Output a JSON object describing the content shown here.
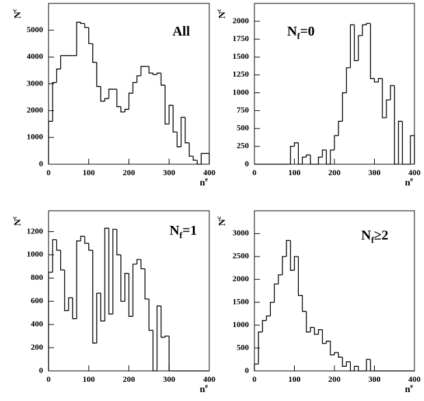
{
  "chart_data": [
    {
      "type": "histogram",
      "title": [
        {
          "text": "All"
        }
      ],
      "x_label": [
        {
          "text": "n"
        },
        {
          "text": "e",
          "sup": true
        }
      ],
      "y_label": [
        {
          "text": "N"
        },
        {
          "text": "c",
          "sup": true
        }
      ],
      "bins": [
        0,
        10,
        20,
        30,
        40,
        50,
        60,
        70,
        80,
        90,
        100,
        110,
        120,
        130,
        140,
        150,
        160,
        170,
        180,
        190,
        200,
        210,
        220,
        230,
        240,
        250,
        260,
        270,
        280,
        290,
        300,
        310,
        320,
        330,
        340,
        350,
        360,
        370,
        380,
        390,
        400
      ],
      "values": [
        1600,
        3050,
        3550,
        4050,
        4050,
        4050,
        4050,
        5300,
        5250,
        5100,
        4500,
        3800,
        2900,
        2350,
        2450,
        2800,
        2800,
        2150,
        1950,
        2050,
        2650,
        3050,
        3300,
        3650,
        3650,
        3400,
        3350,
        3400,
        2950,
        1500,
        2200,
        1200,
        650,
        1750,
        800,
        300,
        150,
        0,
        400,
        400
      ],
      "xlim": [
        0,
        400
      ],
      "xticks": [
        0,
        100,
        200,
        300,
        400
      ],
      "ylim": [
        0,
        6000
      ],
      "yticks": [
        0,
        1000,
        2000,
        3000,
        4000,
        5000
      ],
      "color": "#000000"
    },
    {
      "type": "histogram",
      "title": [
        {
          "text": "N"
        },
        {
          "text": "f",
          "sub": true
        },
        {
          "text": "=0"
        }
      ],
      "x_label": [
        {
          "text": "n"
        },
        {
          "text": "e",
          "sup": true
        }
      ],
      "y_label": [
        {
          "text": "N"
        },
        {
          "text": "c",
          "sup": true
        }
      ],
      "bins": [
        0,
        10,
        20,
        30,
        40,
        50,
        60,
        70,
        80,
        90,
        100,
        110,
        120,
        130,
        140,
        150,
        160,
        170,
        180,
        190,
        200,
        210,
        220,
        230,
        240,
        250,
        260,
        270,
        280,
        290,
        300,
        310,
        320,
        330,
        340,
        350,
        360,
        370,
        380,
        390,
        400
      ],
      "values": [
        0,
        0,
        0,
        0,
        0,
        0,
        0,
        0,
        0,
        250,
        300,
        0,
        100,
        130,
        0,
        0,
        100,
        200,
        0,
        200,
        400,
        600,
        1000,
        1350,
        1950,
        1450,
        1800,
        1950,
        1970,
        1200,
        1150,
        1200,
        650,
        900,
        1100,
        0,
        600,
        0,
        0,
        400
      ],
      "xlim": [
        0,
        400
      ],
      "xticks": [
        0,
        100,
        200,
        300,
        400
      ],
      "ylim": [
        0,
        2250
      ],
      "yticks": [
        0,
        250,
        500,
        750,
        1000,
        1250,
        1500,
        1750,
        2000
      ],
      "color": "#000000"
    },
    {
      "type": "histogram",
      "title": [
        {
          "text": "N"
        },
        {
          "text": "f",
          "sub": true
        },
        {
          "text": "=1"
        }
      ],
      "x_label": [
        {
          "text": "n"
        },
        {
          "text": "e",
          "sup": true
        }
      ],
      "y_label": [
        {
          "text": "N"
        },
        {
          "text": "c",
          "sup": true
        }
      ],
      "bins": [
        0,
        10,
        20,
        30,
        40,
        50,
        60,
        70,
        80,
        90,
        100,
        110,
        120,
        130,
        140,
        150,
        160,
        170,
        180,
        190,
        200,
        210,
        220,
        230,
        240,
        250,
        260,
        270,
        280,
        290,
        300,
        310,
        320,
        330,
        340,
        350,
        360,
        370,
        380,
        390,
        400
      ],
      "values": [
        850,
        1130,
        1040,
        870,
        520,
        630,
        450,
        1120,
        1160,
        1100,
        1040,
        240,
        670,
        430,
        1230,
        490,
        1220,
        1000,
        600,
        840,
        470,
        920,
        960,
        880,
        620,
        350,
        0,
        560,
        290,
        300,
        0,
        0,
        0,
        0,
        0,
        0,
        0,
        0,
        0,
        0
      ],
      "xlim": [
        0,
        400
      ],
      "xticks": [
        0,
        100,
        200,
        300,
        400
      ],
      "ylim": [
        0,
        1380
      ],
      "yticks": [
        0,
        200,
        400,
        600,
        800,
        1000,
        1200
      ],
      "color": "#000000"
    },
    {
      "type": "histogram",
      "title": [
        {
          "text": "N"
        },
        {
          "text": "f",
          "sub": true
        },
        {
          "text": "≥2"
        }
      ],
      "x_label": [
        {
          "text": "n"
        },
        {
          "text": "e",
          "sup": true
        }
      ],
      "y_label": [
        {
          "text": "N"
        },
        {
          "text": "c",
          "sup": true
        }
      ],
      "bins": [
        0,
        10,
        20,
        30,
        40,
        50,
        60,
        70,
        80,
        90,
        100,
        110,
        120,
        130,
        140,
        150,
        160,
        170,
        180,
        190,
        200,
        210,
        220,
        230,
        240,
        250,
        260,
        270,
        280,
        290,
        300,
        310,
        320,
        330,
        340,
        350,
        360,
        370,
        380,
        390,
        400
      ],
      "values": [
        150,
        850,
        1100,
        1200,
        1500,
        1900,
        2100,
        2500,
        2850,
        2200,
        2500,
        1650,
        1300,
        850,
        950,
        800,
        900,
        600,
        650,
        350,
        400,
        300,
        100,
        200,
        0,
        100,
        0,
        0,
        250,
        0,
        0,
        0,
        0,
        0,
        0,
        0,
        0,
        0,
        0,
        0
      ],
      "xlim": [
        0,
        400
      ],
      "xticks": [
        0,
        100,
        200,
        300,
        400
      ],
      "ylim": [
        0,
        3500
      ],
      "yticks": [
        0,
        500,
        1000,
        1500,
        2000,
        2500,
        3000
      ],
      "color": "#000000"
    }
  ]
}
